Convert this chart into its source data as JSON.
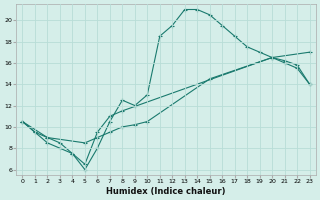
{
  "xlabel": "Humidex (Indice chaleur)",
  "bg_color": "#d5eee9",
  "grid_color": "#b8ddd7",
  "line_color": "#1a7a6e",
  "xlim": [
    -0.5,
    23.5
  ],
  "ylim": [
    5.5,
    21.5
  ],
  "yticks": [
    6,
    8,
    10,
    12,
    14,
    16,
    18,
    20
  ],
  "xticks": [
    0,
    1,
    2,
    3,
    4,
    5,
    6,
    7,
    8,
    9,
    10,
    11,
    12,
    13,
    14,
    15,
    16,
    17,
    18,
    19,
    20,
    21,
    22,
    23
  ],
  "line1_x": [
    0,
    1,
    2,
    3,
    4,
    5,
    6,
    7,
    8,
    9,
    10,
    11,
    12,
    13,
    14,
    15,
    16,
    17,
    18,
    19,
    20,
    21,
    22,
    23
  ],
  "line1_y": [
    10.5,
    9.5,
    8.5,
    8.0,
    7.5,
    6.0,
    8.0,
    10.5,
    12.5,
    12.0,
    13.0,
    18.5,
    19.5,
    21.0,
    21.0,
    20.5,
    19.5,
    18.5,
    17.5,
    17.0,
    16.5,
    16.0,
    15.5,
    14.0
  ],
  "line2_x": [
    0,
    2,
    3,
    4,
    5,
    6,
    7,
    8,
    20,
    21,
    22,
    23
  ],
  "line2_y": [
    10.5,
    9.0,
    8.5,
    7.5,
    6.5,
    9.5,
    11.0,
    11.5,
    16.5,
    16.2,
    15.8,
    14.0
  ],
  "line3_x": [
    0,
    1,
    2,
    5,
    6,
    7,
    8,
    9,
    10,
    15,
    20,
    23
  ],
  "line3_y": [
    10.5,
    9.5,
    9.0,
    8.5,
    9.0,
    9.5,
    10.0,
    10.2,
    10.5,
    14.5,
    16.5,
    17.0
  ]
}
